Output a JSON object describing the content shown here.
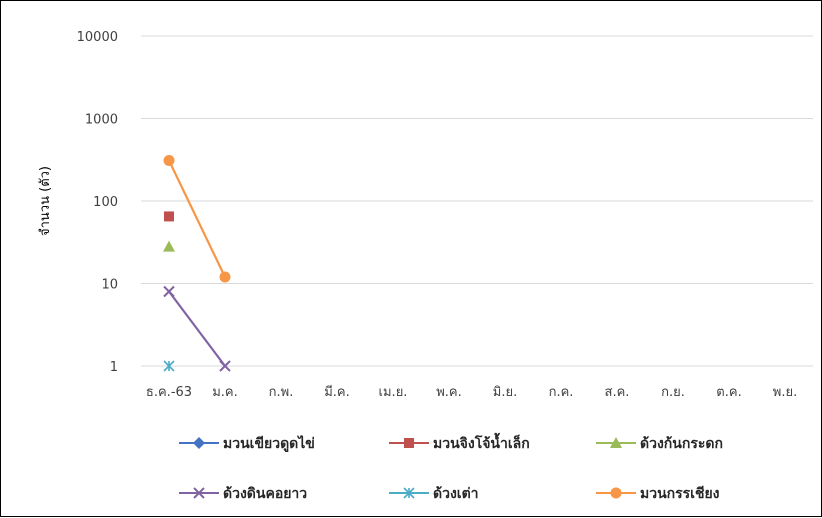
{
  "chart_data": {
    "type": "line",
    "title": "",
    "xlabel": "",
    "ylabel": "จำนวน (ตัว)",
    "yscale": "log",
    "ylim": [
      1,
      10000
    ],
    "yticks": [
      "1",
      "10",
      "100",
      "1000",
      "10000"
    ],
    "grid": true,
    "legend_position": "bottom",
    "categories": [
      "ธ.ค.-63",
      "ม.ค.",
      "ก.พ.",
      "มี.ค.",
      "เม.ย.",
      "พ.ค.",
      "มิ.ย.",
      "ก.ค.",
      "ส.ค.",
      "ก.ย.",
      "ต.ค.",
      "พ.ย."
    ],
    "series": [
      {
        "name": "มวนเขียวดูดไข่",
        "color": "#4472C4",
        "marker": "diamond",
        "values": [
          null,
          null,
          null,
          null,
          null,
          null,
          null,
          null,
          null,
          null,
          null,
          null
        ]
      },
      {
        "name": "มวนจิงโจ้น้ำเล็ก",
        "color": "#C0504D",
        "marker": "square",
        "values": [
          65,
          null,
          null,
          null,
          null,
          null,
          null,
          null,
          null,
          null,
          null,
          null
        ]
      },
      {
        "name": "ด้วงก้นกระดก",
        "color": "#9BBB59",
        "marker": "triangle",
        "values": [
          28,
          null,
          null,
          null,
          null,
          null,
          null,
          null,
          null,
          null,
          null,
          null
        ]
      },
      {
        "name": "ด้วงดินคอยาว",
        "color": "#8064A2",
        "marker": "x",
        "values": [
          8,
          1,
          null,
          null,
          null,
          null,
          null,
          null,
          null,
          null,
          null,
          null
        ]
      },
      {
        "name": "ด้วงเต่า",
        "color": "#4BACC6",
        "marker": "star",
        "values": [
          1,
          null,
          null,
          null,
          null,
          null,
          null,
          null,
          null,
          null,
          null,
          null
        ]
      },
      {
        "name": "มวนกรรเชียง",
        "color": "#F79646",
        "marker": "circle",
        "values": [
          310,
          12,
          null,
          null,
          null,
          null,
          null,
          null,
          null,
          null,
          null,
          null
        ]
      }
    ]
  }
}
